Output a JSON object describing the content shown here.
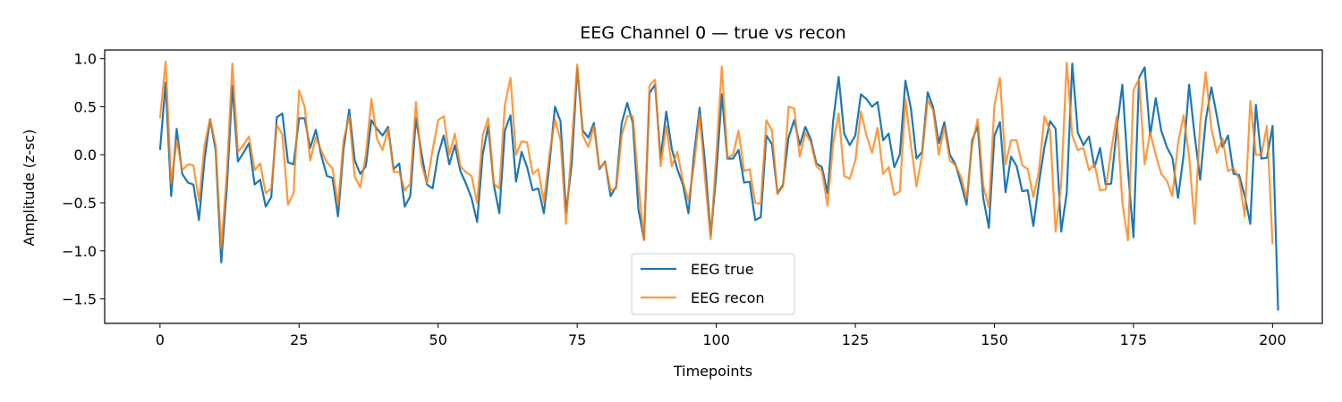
{
  "chart_data": {
    "type": "line",
    "title": "EEG Channel 0 — true vs recon",
    "xlabel": "Timepoints",
    "ylabel": "Amplitude (z-sc)",
    "xlim": [
      -9.95,
      208.95
    ],
    "ylim": [
      -1.755,
      1.09
    ],
    "xticks": [
      0,
      25,
      50,
      75,
      100,
      125,
      150,
      175,
      200
    ],
    "yticks": [
      1.0,
      0.5,
      0.0,
      -0.5,
      -1.0,
      -1.5
    ],
    "xtick_labels": [
      "0",
      "25",
      "50",
      "75",
      "100",
      "125",
      "150",
      "175",
      "200"
    ],
    "ytick_labels": [
      "1.0",
      "0.5",
      "0.0",
      "−0.5",
      "−1.0",
      "−1.5"
    ],
    "grid": false,
    "legend_position": "bottom-center",
    "series": [
      {
        "name": "EEG true",
        "color": "#1f77b4",
        "values": [
          0.05,
          0.75,
          -0.43,
          0.27,
          -0.2,
          -0.29,
          -0.31,
          -0.68,
          -0.05,
          0.37,
          0.05,
          -1.12,
          -0.35,
          0.72,
          -0.07,
          0.02,
          0.12,
          -0.31,
          -0.26,
          -0.54,
          -0.44,
          0.39,
          0.43,
          -0.08,
          -0.1,
          0.38,
          0.38,
          0.07,
          0.26,
          -0.01,
          -0.22,
          -0.24,
          -0.64,
          0.06,
          0.47,
          -0.06,
          -0.2,
          -0.12,
          0.36,
          0.27,
          0.2,
          0.29,
          -0.15,
          -0.09,
          -0.54,
          -0.43,
          0.38,
          0.02,
          -0.31,
          -0.35,
          0.0,
          0.2,
          -0.1,
          0.1,
          -0.17,
          -0.3,
          -0.45,
          -0.7,
          0.0,
          0.3,
          -0.31,
          -0.61,
          0.25,
          0.41,
          -0.28,
          0.03,
          -0.13,
          -0.37,
          -0.35,
          -0.61,
          -0.1,
          0.5,
          0.35,
          -0.6,
          -0.1,
          0.9,
          0.25,
          0.18,
          0.33,
          -0.15,
          -0.07,
          -0.43,
          -0.33,
          0.33,
          0.54,
          0.33,
          -0.57,
          -0.88,
          0.64,
          0.73,
          -0.04,
          0.45,
          0.06,
          -0.15,
          -0.31,
          -0.61,
          0.0,
          0.49,
          -0.1,
          -0.84,
          -0.2,
          0.63,
          -0.04,
          -0.04,
          0.05,
          -0.29,
          -0.28,
          -0.68,
          -0.65,
          0.2,
          0.11,
          -0.4,
          -0.31,
          0.18,
          0.36,
          0.1,
          0.29,
          0.16,
          -0.09,
          -0.13,
          -0.4,
          0.35,
          0.81,
          0.22,
          0.1,
          0.2,
          0.63,
          0.58,
          0.5,
          0.55,
          0.15,
          0.22,
          -0.13,
          0.0,
          0.77,
          0.48,
          -0.04,
          0.03,
          0.65,
          0.49,
          0.12,
          0.34,
          0.0,
          -0.1,
          -0.3,
          -0.52,
          0.15,
          0.3,
          -0.45,
          -0.76,
          0.2,
          0.34,
          -0.39,
          -0.02,
          -0.12,
          -0.38,
          -0.37,
          -0.74,
          -0.3,
          0.08,
          0.35,
          0.27,
          -0.8,
          -0.4,
          0.95,
          0.23,
          0.1,
          0.19,
          -0.13,
          0.07,
          -0.31,
          -0.3,
          0.27,
          0.73,
          -0.15,
          -0.86,
          0.8,
          0.91,
          0.2,
          0.59,
          0.25,
          0.08,
          -0.03,
          -0.45,
          -0.01,
          0.73,
          0.2,
          -0.26,
          0.36,
          0.7,
          0.4,
          0.08,
          0.2,
          -0.2,
          -0.21,
          -0.43,
          -0.72,
          0.52,
          -0.04,
          -0.03,
          0.3,
          -1.62
        ]
      },
      {
        "name": "EEG recon",
        "color": "#ff7f0e",
        "values": [
          0.38,
          0.97,
          -0.3,
          0.15,
          -0.16,
          -0.1,
          -0.11,
          -0.48,
          0.1,
          0.37,
          0.1,
          -0.97,
          -0.2,
          0.95,
          0.03,
          0.1,
          0.19,
          -0.16,
          -0.09,
          -0.4,
          -0.35,
          0.31,
          0.21,
          -0.52,
          -0.4,
          0.67,
          0.5,
          -0.06,
          0.18,
          0.04,
          -0.08,
          -0.14,
          -0.52,
          0.15,
          0.4,
          -0.23,
          -0.34,
          0.0,
          0.58,
          0.17,
          0.05,
          0.27,
          -0.18,
          -0.18,
          -0.37,
          -0.3,
          0.55,
          -0.1,
          -0.3,
          0.05,
          0.36,
          0.4,
          0.0,
          0.22,
          -0.12,
          -0.18,
          -0.22,
          -0.5,
          0.2,
          0.38,
          -0.3,
          -0.35,
          0.52,
          0.8,
          0.0,
          0.14,
          0.13,
          -0.2,
          -0.15,
          -0.5,
          0.0,
          0.37,
          0.15,
          -0.72,
          0.1,
          0.94,
          0.2,
          0.08,
          0.3,
          -0.14,
          -0.08,
          -0.37,
          -0.35,
          0.2,
          0.4,
          0.4,
          -0.3,
          -0.89,
          0.72,
          0.78,
          -0.12,
          0.3,
          -0.12,
          0.03,
          -0.27,
          -0.48,
          -0.11,
          0.42,
          -0.27,
          -0.88,
          0.0,
          0.92,
          -0.03,
          0.0,
          0.25,
          -0.17,
          -0.15,
          -0.5,
          -0.51,
          0.36,
          0.25,
          -0.41,
          -0.33,
          0.5,
          0.48,
          -0.02,
          0.23,
          0.13,
          -0.12,
          -0.17,
          -0.53,
          0.12,
          0.43,
          -0.22,
          -0.25,
          -0.06,
          0.45,
          0.2,
          0.02,
          0.28,
          -0.2,
          -0.13,
          -0.42,
          -0.38,
          0.58,
          0.1,
          -0.33,
          0.0,
          0.57,
          0.46,
          0.0,
          0.29,
          -0.06,
          -0.11,
          -0.23,
          -0.46,
          0.1,
          0.37,
          -0.32,
          -0.55,
          0.52,
          0.8,
          -0.1,
          0.15,
          0.15,
          -0.11,
          -0.15,
          -0.44,
          -0.17,
          0.4,
          0.25,
          -0.8,
          -0.3,
          0.96,
          0.2,
          0.05,
          0.07,
          -0.16,
          -0.1,
          -0.37,
          -0.36,
          0.05,
          0.4,
          -0.5,
          -0.89,
          0.67,
          0.79,
          -0.1,
          0.23,
          0.0,
          -0.2,
          -0.27,
          -0.43,
          0.12,
          0.41,
          -0.02,
          -0.72,
          0.33,
          0.86,
          0.27,
          0.02,
          0.17,
          -0.17,
          -0.14,
          -0.25,
          -0.64,
          0.56,
          0.0,
          0.0,
          0.3,
          -0.93
        ]
      }
    ]
  }
}
